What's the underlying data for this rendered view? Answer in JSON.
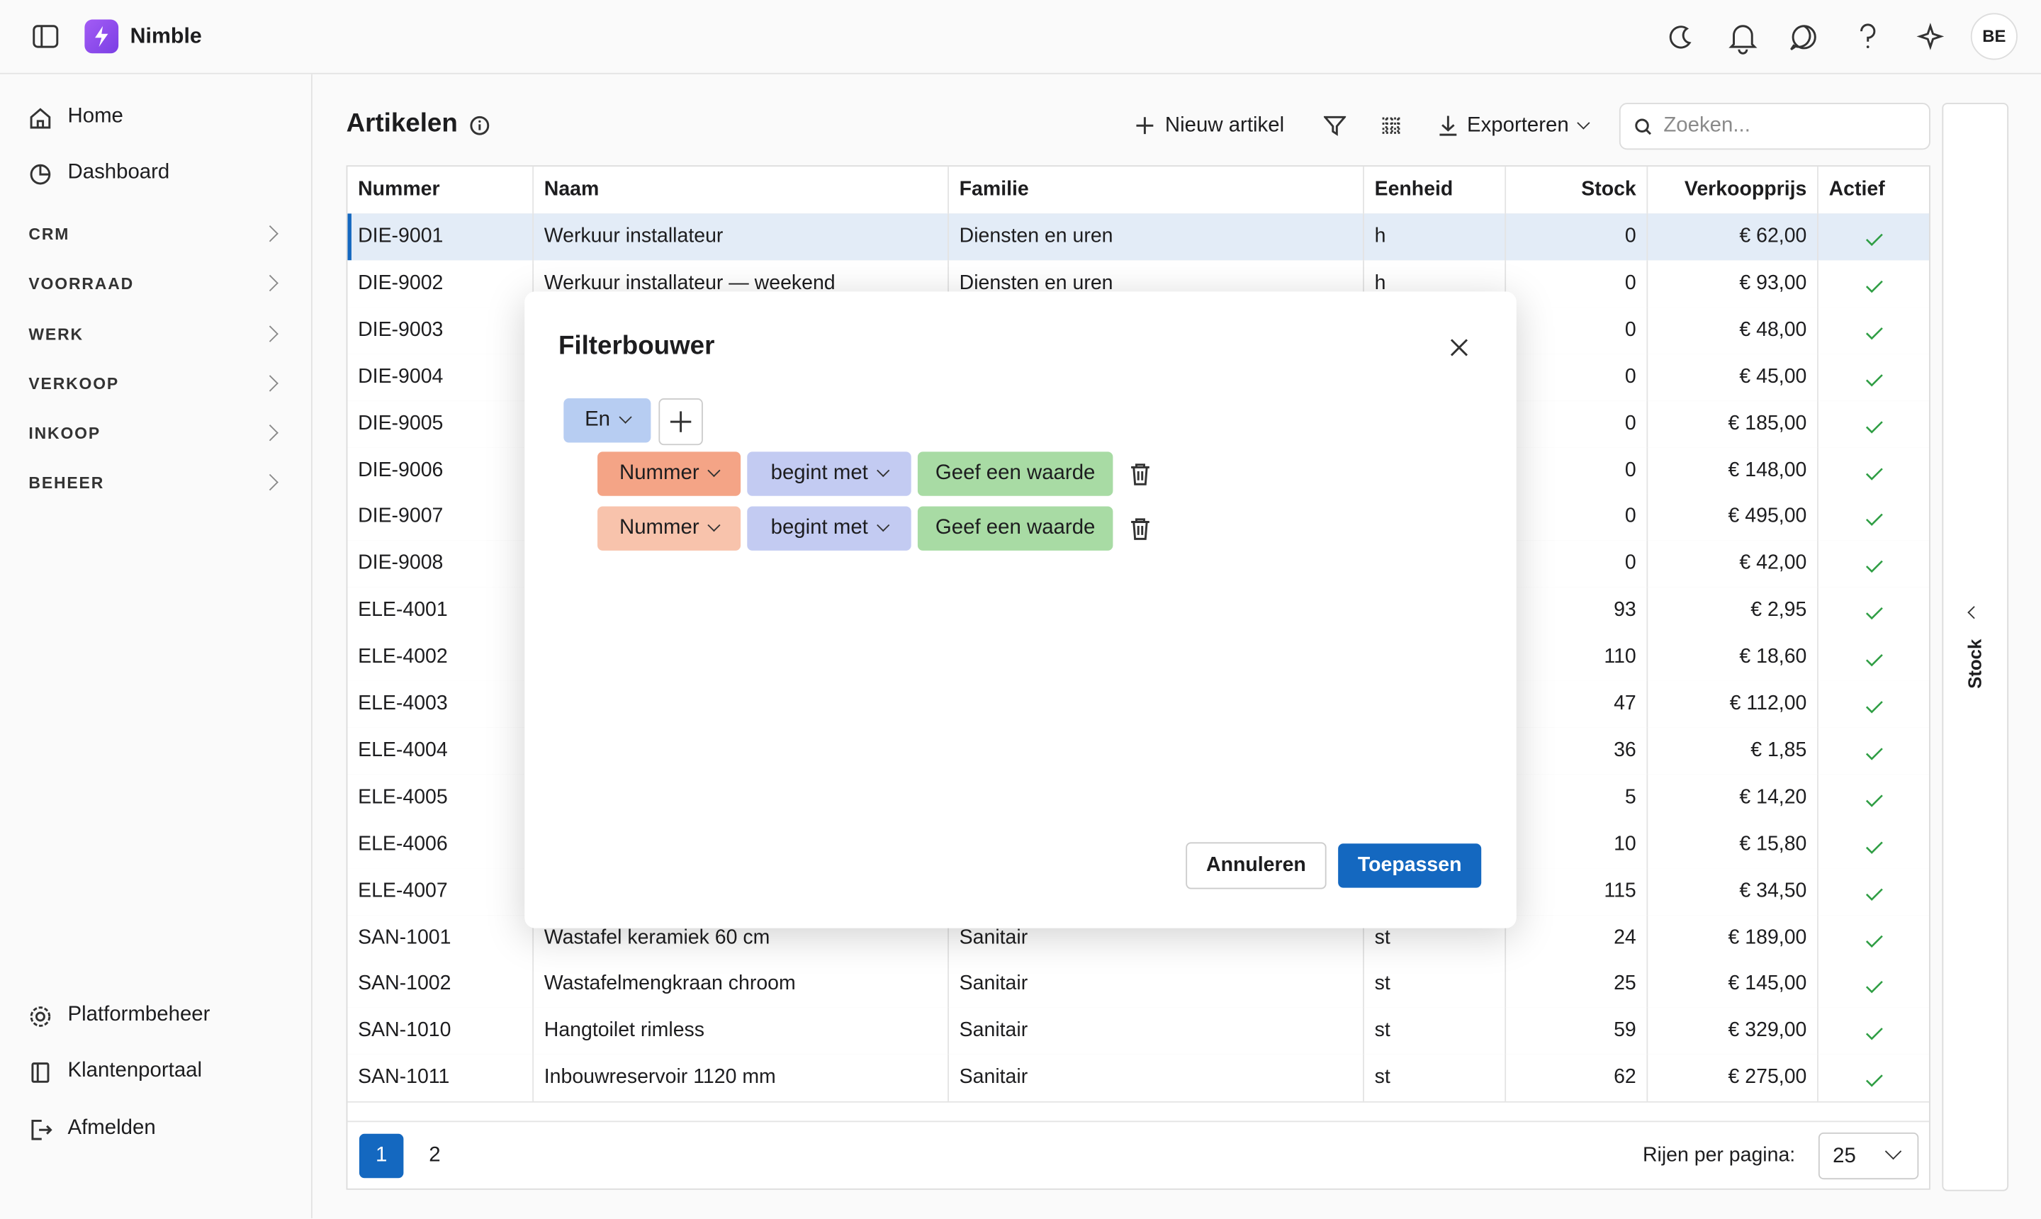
{
  "header": {
    "app_name": "Nimble",
    "avatar": "BE"
  },
  "sidebar": {
    "nav": [
      "Home",
      "Dashboard"
    ],
    "sections": [
      "CRM",
      "VOORRAAD",
      "WERK",
      "VERKOOP",
      "INKOOP",
      "BEHEER"
    ],
    "footer": [
      "Platformbeheer",
      "Klantenportaal",
      "Afmelden"
    ]
  },
  "page": {
    "title": "Artikelen",
    "new_item": "Nieuw artikel",
    "export": "Exporteren",
    "search_placeholder": "Zoeken...",
    "side_panel": "Stock"
  },
  "table": {
    "columns": [
      "Nummer",
      "Naam",
      "Familie",
      "Eenheid",
      "Stock",
      "Verkoopprijs",
      "Actief"
    ],
    "rows": [
      [
        "DIE-9001",
        "Werkuur installateur",
        "Diensten en uren",
        "h",
        0,
        "€ 62,00"
      ],
      [
        "DIE-9002",
        "Werkuur installateur — weekend",
        "Diensten en uren",
        "h",
        0,
        "€ 93,00"
      ],
      [
        "DIE-9003",
        null,
        null,
        null,
        0,
        "€ 48,00"
      ],
      [
        "DIE-9004",
        null,
        null,
        null,
        0,
        "€ 45,00"
      ],
      [
        "DIE-9005",
        null,
        null,
        null,
        0,
        "€ 185,00"
      ],
      [
        "DIE-9006",
        null,
        null,
        null,
        0,
        "€ 148,00"
      ],
      [
        "DIE-9007",
        null,
        null,
        null,
        0,
        "€ 495,00"
      ],
      [
        "DIE-9008",
        null,
        null,
        null,
        0,
        "€ 42,00"
      ],
      [
        "ELE-4001",
        null,
        null,
        null,
        93,
        "€ 2,95"
      ],
      [
        "ELE-4002",
        null,
        null,
        null,
        110,
        "€ 18,60"
      ],
      [
        "ELE-4003",
        null,
        null,
        null,
        47,
        "€ 112,00"
      ],
      [
        "ELE-4004",
        null,
        null,
        null,
        36,
        "€ 1,85"
      ],
      [
        "ELE-4005",
        null,
        null,
        null,
        5,
        "€ 14,20"
      ],
      [
        "ELE-4006",
        null,
        null,
        null,
        10,
        "€ 15,80"
      ],
      [
        "ELE-4007",
        null,
        null,
        null,
        115,
        "€ 34,50"
      ],
      [
        "SAN-1001",
        "Wastafel keramiek 60 cm",
        "Sanitair",
        "st",
        24,
        "€ 189,00"
      ],
      [
        "SAN-1002",
        "Wastafelmengkraan chroom",
        "Sanitair",
        "st",
        25,
        "€ 145,00"
      ],
      [
        "SAN-1010",
        "Hangtoilet rimless",
        "Sanitair",
        "st",
        59,
        "€ 329,00"
      ],
      [
        "SAN-1011",
        "Inbouwreservoir 1120 mm",
        "Sanitair",
        "st",
        62,
        "€ 275,00"
      ]
    ]
  },
  "pagination": {
    "pages": [
      1,
      2
    ],
    "rows_per_page_label": "Rijen per pagina:",
    "rows_per_page": 25
  },
  "dialog": {
    "title": "Filterbouwer",
    "operator": "En",
    "rules": [
      {
        "field": "Nummer",
        "condition": "begint met",
        "value": "Geef een waarde"
      },
      {
        "field": "Nummer",
        "condition": "begint met",
        "value": "Geef een waarde"
      }
    ],
    "cancel": "Annuleren",
    "apply": "Toepassen"
  }
}
